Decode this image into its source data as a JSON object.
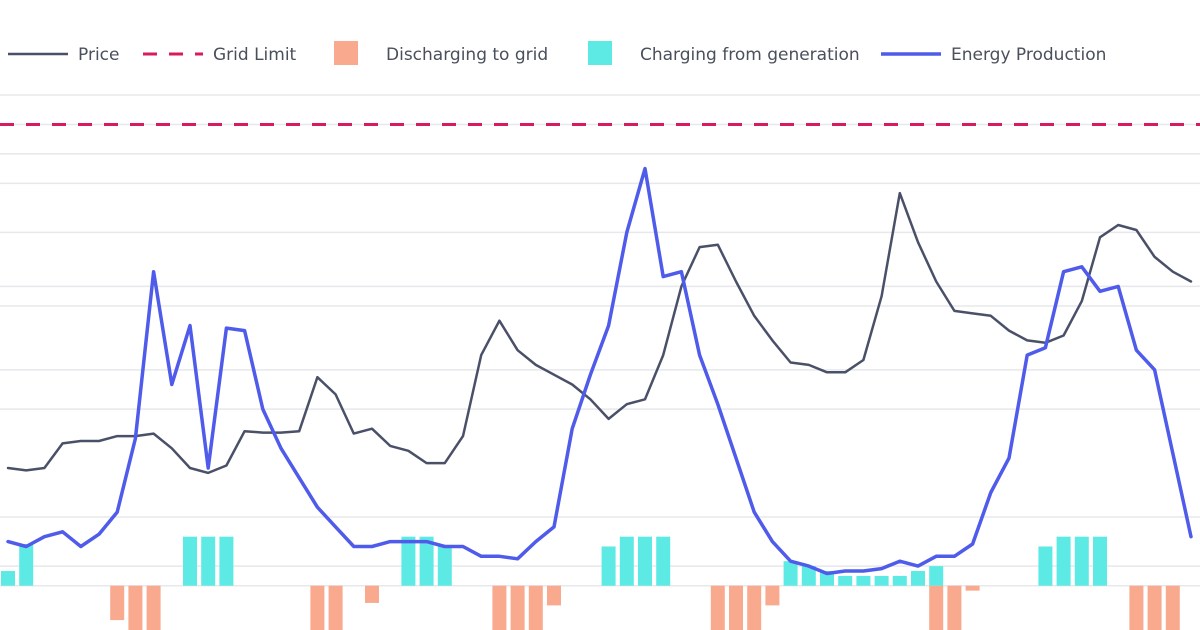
{
  "chart_data": {
    "type": "line",
    "title": "",
    "xlabel": "",
    "ylabel": "",
    "ylim": [
      -8,
      100
    ],
    "grid": true,
    "legend": {
      "position": "top-left",
      "items": [
        {
          "key": "price",
          "label": "Price",
          "style": "line",
          "color": "#4a5068"
        },
        {
          "key": "grid_limit",
          "label": "Grid Limit",
          "style": "dashed",
          "color": "#d81b60"
        },
        {
          "key": "discharge",
          "label": "Discharging to grid",
          "style": "box",
          "color": "#f9a98e"
        },
        {
          "key": "charge",
          "label": "Charging from generation",
          "style": "box",
          "color": "#5eeae4"
        },
        {
          "key": "production",
          "label": "Energy Production",
          "style": "line",
          "color": "#4f5bea"
        }
      ]
    },
    "grid_lines": [
      0,
      4,
      14,
      36,
      44,
      57,
      61,
      72,
      82,
      88,
      94,
      100
    ],
    "grid_limit": 94,
    "x": [
      0,
      1,
      2,
      3,
      4,
      5,
      6,
      7,
      8,
      9,
      10,
      11,
      12,
      13,
      14,
      15,
      16,
      17,
      18,
      19,
      20,
      21,
      22,
      23,
      24,
      25,
      26,
      27,
      28,
      29,
      30,
      31,
      32,
      33,
      34,
      35,
      36,
      37,
      38,
      39,
      40,
      41,
      42,
      43,
      44,
      45,
      46,
      47,
      48,
      49,
      50,
      51,
      52,
      53,
      54,
      55,
      56,
      57,
      58,
      59,
      60,
      61,
      62,
      63,
      64,
      65
    ],
    "series": [
      {
        "name": "Price",
        "key": "price",
        "values": [
          24,
          23.5,
          24,
          29,
          29.5,
          29.5,
          30.5,
          30.5,
          31,
          28,
          24,
          23,
          24.5,
          31.5,
          31.2,
          31.2,
          31.5,
          42.5,
          39,
          31,
          32,
          28.5,
          27.5,
          25,
          25,
          30.5,
          47,
          54,
          48,
          45,
          43,
          41,
          38,
          34,
          37,
          38,
          47,
          61,
          69,
          69.5,
          62,
          55,
          50,
          45.5,
          45,
          43.5,
          43.5,
          46,
          59,
          80,
          70,
          62,
          56,
          55.5,
          55,
          52,
          50,
          49.5,
          51,
          58,
          71,
          73.5,
          72.5,
          67,
          64,
          62
        ]
      },
      {
        "name": "Energy Production",
        "key": "production",
        "values": [
          9,
          8,
          10,
          11,
          8,
          10.5,
          15,
          30,
          64,
          41,
          53,
          24,
          52.5,
          52,
          36,
          28,
          22,
          16,
          12,
          8,
          8,
          9,
          9,
          9,
          8,
          8,
          6,
          6,
          5.5,
          9,
          12,
          32,
          43,
          53,
          72,
          85,
          63,
          64,
          47,
          37,
          26,
          15,
          9,
          5,
          4,
          2.5,
          3,
          3,
          3.5,
          5,
          4,
          6,
          6,
          8.5,
          19,
          26,
          47,
          48.5,
          64,
          65,
          60,
          61,
          48,
          44,
          27,
          10
        ]
      },
      {
        "name": "Charging from generation",
        "key": "charge",
        "values": [
          3,
          8.5,
          0,
          0,
          0,
          0,
          0,
          0,
          0,
          0,
          10,
          10,
          10,
          0,
          0,
          0,
          0,
          0,
          0,
          0,
          0,
          0,
          10,
          10,
          8,
          0,
          0,
          0,
          0,
          0,
          0,
          0,
          0,
          8,
          10,
          10,
          10,
          0,
          0,
          0,
          0,
          0,
          0,
          5,
          4,
          3,
          2,
          2,
          2,
          2,
          3,
          4,
          0,
          0,
          0,
          0,
          0,
          8,
          10,
          10,
          10,
          0,
          0,
          0,
          0,
          0
        ]
      },
      {
        "name": "Discharging to grid",
        "key": "discharge",
        "values": [
          0,
          0,
          0,
          0,
          0,
          0,
          -7,
          -10,
          -10,
          0,
          0,
          0,
          0,
          0,
          0,
          0,
          0,
          -10,
          -10,
          0,
          -3.5,
          0,
          0,
          0,
          0,
          0,
          0,
          -10,
          -10,
          -10,
          -4,
          0,
          0,
          0,
          0,
          0,
          0,
          0,
          0,
          -10,
          -10,
          -10,
          -4,
          0,
          0,
          0,
          0,
          0,
          0,
          0,
          0,
          -10,
          -10,
          -1,
          0,
          0,
          0,
          0,
          0,
          0,
          0,
          0,
          -10,
          -10,
          -10,
          0
        ]
      }
    ]
  }
}
